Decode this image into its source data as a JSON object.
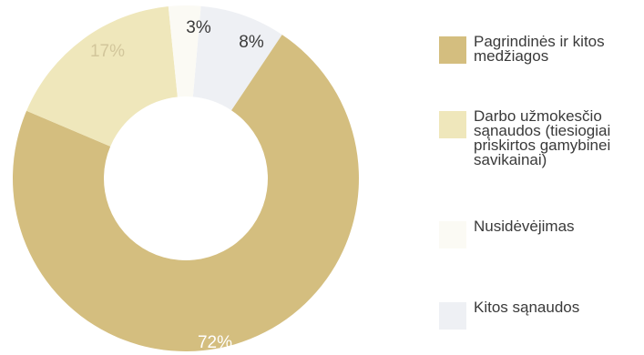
{
  "chart_data": {
    "type": "pie",
    "variant": "donut",
    "categories": [
      "Pagrindinės ir kitos medžiagos",
      "Darbo užmokesčio sąnaudos (tiesiogiai priskirtos gamybinei savikainai)",
      "Nusidėvėjimas",
      "Kitos sąnaudos"
    ],
    "values": [
      72,
      17,
      3,
      8
    ],
    "value_labels": [
      "72%",
      "17%",
      "3%",
      "8%"
    ],
    "colors": [
      "#d4be7f",
      "#efe7bb",
      "#fbfaf4",
      "#eef0f4"
    ],
    "label_colors": [
      "#ffffff",
      "#d2c69b",
      "#3a3a3a",
      "#3a3a3a"
    ],
    "legend_placement": "right",
    "title": ""
  }
}
